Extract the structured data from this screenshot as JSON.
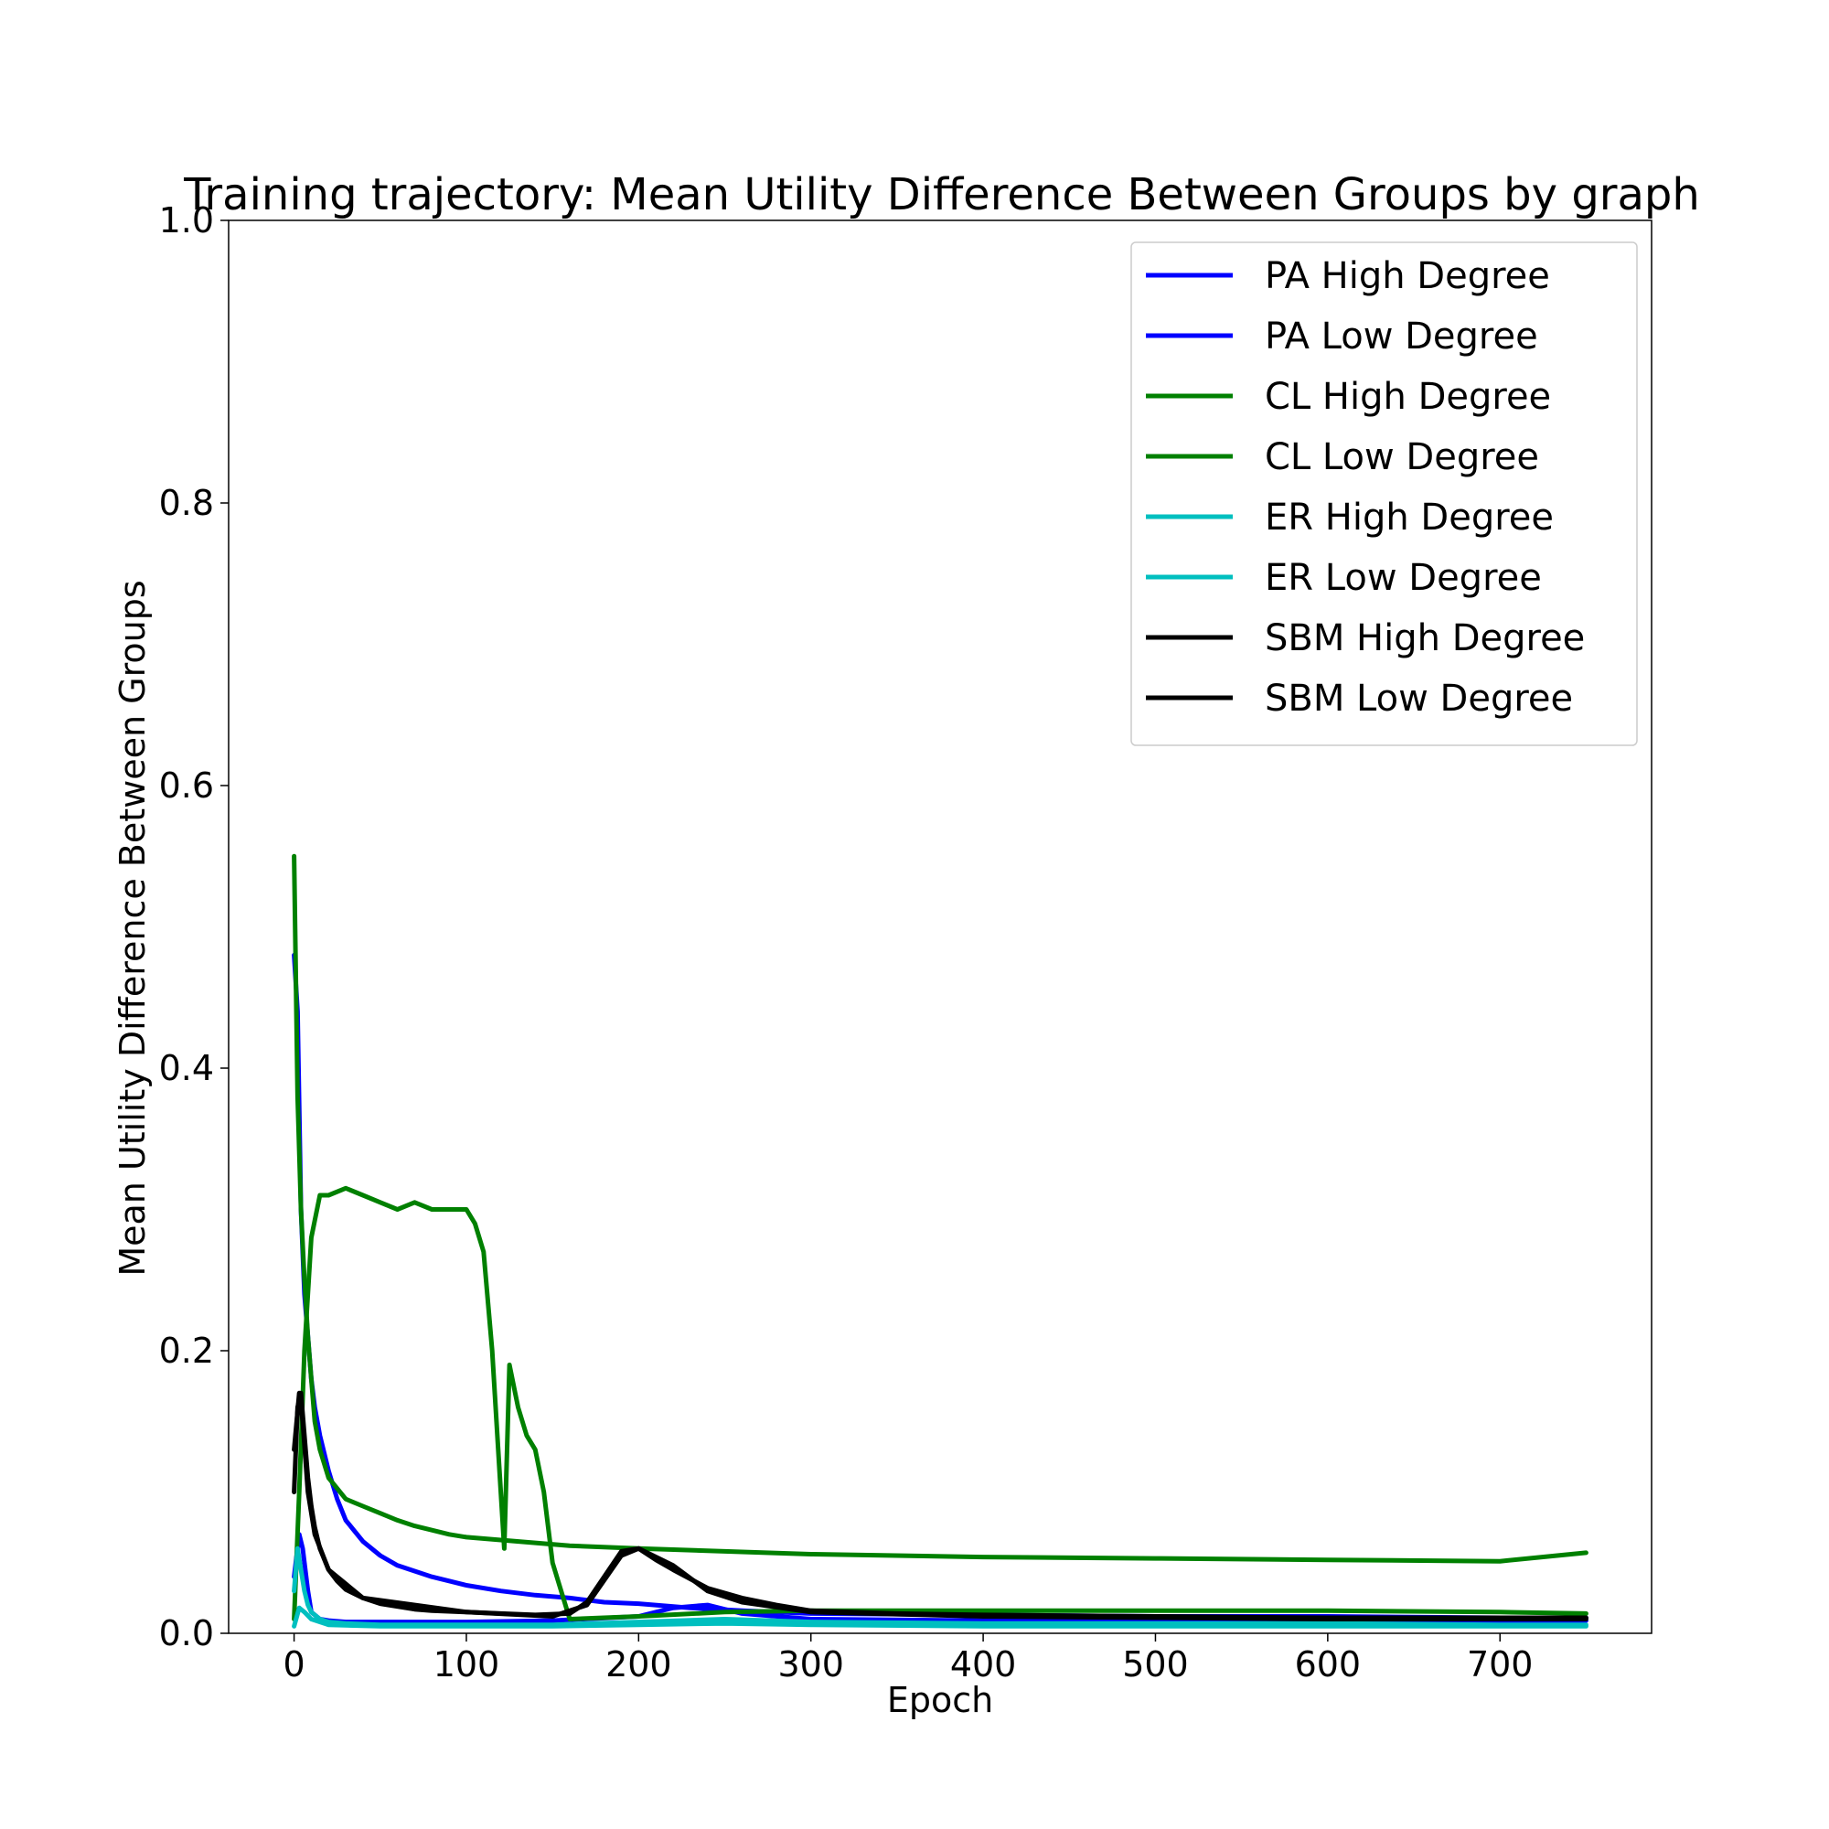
{
  "chart_data": {
    "type": "line",
    "title": "Training trajectory: Mean Utility Difference Between Groups by graph",
    "xlabel": "Epoch",
    "ylabel": "Mean Utility Difference Between Groups",
    "xlim": [
      -38,
      788
    ],
    "ylim": [
      0.0,
      1.0
    ],
    "xticks": [
      0,
      100,
      200,
      300,
      400,
      500,
      600,
      700
    ],
    "yticks": [
      0.0,
      0.2,
      0.4,
      0.6,
      0.8,
      1.0
    ],
    "xtick_labels": [
      "0",
      "100",
      "200",
      "300",
      "400",
      "500",
      "600",
      "700"
    ],
    "ytick_labels": [
      "0.0",
      "0.2",
      "0.4",
      "0.6",
      "0.8",
      "1.0"
    ],
    "grid": false,
    "legend_position": "top-right",
    "series": [
      {
        "name": "PA High Degree",
        "color": "#0000ff",
        "x": [
          0,
          2,
          4,
          6,
          8,
          10,
          12,
          15,
          20,
          25,
          30,
          40,
          50,
          60,
          70,
          80,
          90,
          100,
          120,
          140,
          160,
          180,
          200,
          230,
          260,
          300,
          400,
          500,
          600,
          700,
          750
        ],
        "y": [
          0.48,
          0.44,
          0.3,
          0.24,
          0.21,
          0.18,
          0.16,
          0.14,
          0.115,
          0.095,
          0.08,
          0.065,
          0.055,
          0.048,
          0.044,
          0.04,
          0.037,
          0.034,
          0.03,
          0.027,
          0.025,
          0.022,
          0.021,
          0.018,
          0.016,
          0.014,
          0.013,
          0.012,
          0.012,
          0.011,
          0.011
        ]
      },
      {
        "name": "PA Low Degree",
        "color": "#0000ff",
        "x": [
          0,
          3,
          5,
          8,
          10,
          15,
          20,
          30,
          50,
          100,
          150,
          200,
          220,
          240,
          260,
          300,
          400,
          500,
          600,
          700,
          750
        ],
        "y": [
          0.04,
          0.07,
          0.06,
          0.03,
          0.015,
          0.01,
          0.009,
          0.008,
          0.008,
          0.008,
          0.009,
          0.012,
          0.018,
          0.02,
          0.014,
          0.01,
          0.009,
          0.009,
          0.009,
          0.009,
          0.009
        ]
      },
      {
        "name": "CL High Degree",
        "color": "#008000",
        "x": [
          0,
          2,
          4,
          6,
          8,
          10,
          12,
          15,
          20,
          30,
          40,
          50,
          60,
          70,
          80,
          90,
          100,
          120,
          140,
          160,
          200,
          250,
          300,
          400,
          500,
          600,
          700,
          750
        ],
        "y": [
          0.55,
          0.38,
          0.3,
          0.25,
          0.21,
          0.18,
          0.15,
          0.13,
          0.11,
          0.095,
          0.09,
          0.085,
          0.08,
          0.076,
          0.073,
          0.07,
          0.068,
          0.066,
          0.064,
          0.062,
          0.06,
          0.058,
          0.056,
          0.054,
          0.053,
          0.052,
          0.051,
          0.057
        ]
      },
      {
        "name": "CL Low Degree",
        "color": "#008000",
        "x": [
          0,
          3,
          6,
          10,
          15,
          20,
          30,
          40,
          50,
          60,
          70,
          80,
          90,
          100,
          105,
          110,
          115,
          120,
          122,
          125,
          130,
          135,
          140,
          145,
          150,
          160,
          200,
          250,
          300,
          400,
          500,
          600,
          700,
          750
        ],
        "y": [
          0.01,
          0.1,
          0.2,
          0.28,
          0.31,
          0.31,
          0.315,
          0.31,
          0.305,
          0.3,
          0.305,
          0.3,
          0.3,
          0.3,
          0.29,
          0.27,
          0.2,
          0.1,
          0.06,
          0.19,
          0.16,
          0.14,
          0.13,
          0.1,
          0.05,
          0.01,
          0.012,
          0.015,
          0.016,
          0.016,
          0.016,
          0.016,
          0.015,
          0.014
        ]
      },
      {
        "name": "ER High Degree",
        "color": "#00bfbf",
        "x": [
          0,
          2,
          4,
          6,
          8,
          10,
          15,
          20,
          30,
          50,
          100,
          150,
          200,
          250,
          300,
          400,
          500,
          600,
          700,
          750
        ],
        "y": [
          0.03,
          0.06,
          0.045,
          0.03,
          0.02,
          0.015,
          0.01,
          0.008,
          0.007,
          0.006,
          0.006,
          0.006,
          0.008,
          0.01,
          0.008,
          0.007,
          0.007,
          0.007,
          0.006,
          0.006
        ]
      },
      {
        "name": "ER Low Degree",
        "color": "#00bfbf",
        "x": [
          0,
          3,
          6,
          10,
          20,
          50,
          100,
          150,
          200,
          250,
          300,
          400,
          500,
          600,
          700,
          750
        ],
        "y": [
          0.005,
          0.018,
          0.015,
          0.01,
          0.006,
          0.005,
          0.005,
          0.005,
          0.006,
          0.007,
          0.006,
          0.005,
          0.005,
          0.005,
          0.005,
          0.005
        ]
      },
      {
        "name": "SBM High Degree",
        "color": "#000000",
        "x": [
          0,
          2,
          4,
          6,
          8,
          10,
          12,
          15,
          20,
          25,
          30,
          40,
          50,
          60,
          70,
          80,
          100,
          120,
          140,
          160,
          170,
          180,
          190,
          200,
          210,
          220,
          240,
          260,
          280,
          300,
          350,
          400,
          500,
          600,
          700,
          750
        ],
        "y": [
          0.1,
          0.16,
          0.17,
          0.14,
          0.11,
          0.09,
          0.075,
          0.06,
          0.045,
          0.037,
          0.031,
          0.025,
          0.021,
          0.019,
          0.017,
          0.016,
          0.015,
          0.014,
          0.013,
          0.014,
          0.022,
          0.04,
          0.058,
          0.06,
          0.052,
          0.045,
          0.032,
          0.025,
          0.02,
          0.016,
          0.014,
          0.013,
          0.012,
          0.011,
          0.011,
          0.011
        ]
      },
      {
        "name": "SBM Low Degree",
        "color": "#000000",
        "x": [
          0,
          3,
          5,
          8,
          12,
          20,
          40,
          100,
          150,
          170,
          190,
          200,
          220,
          240,
          260,
          300,
          400,
          500,
          600,
          700,
          750
        ],
        "y": [
          0.13,
          0.17,
          0.15,
          0.1,
          0.07,
          0.045,
          0.025,
          0.015,
          0.012,
          0.02,
          0.055,
          0.06,
          0.048,
          0.03,
          0.022,
          0.015,
          0.012,
          0.011,
          0.01,
          0.01,
          0.01
        ]
      }
    ]
  }
}
